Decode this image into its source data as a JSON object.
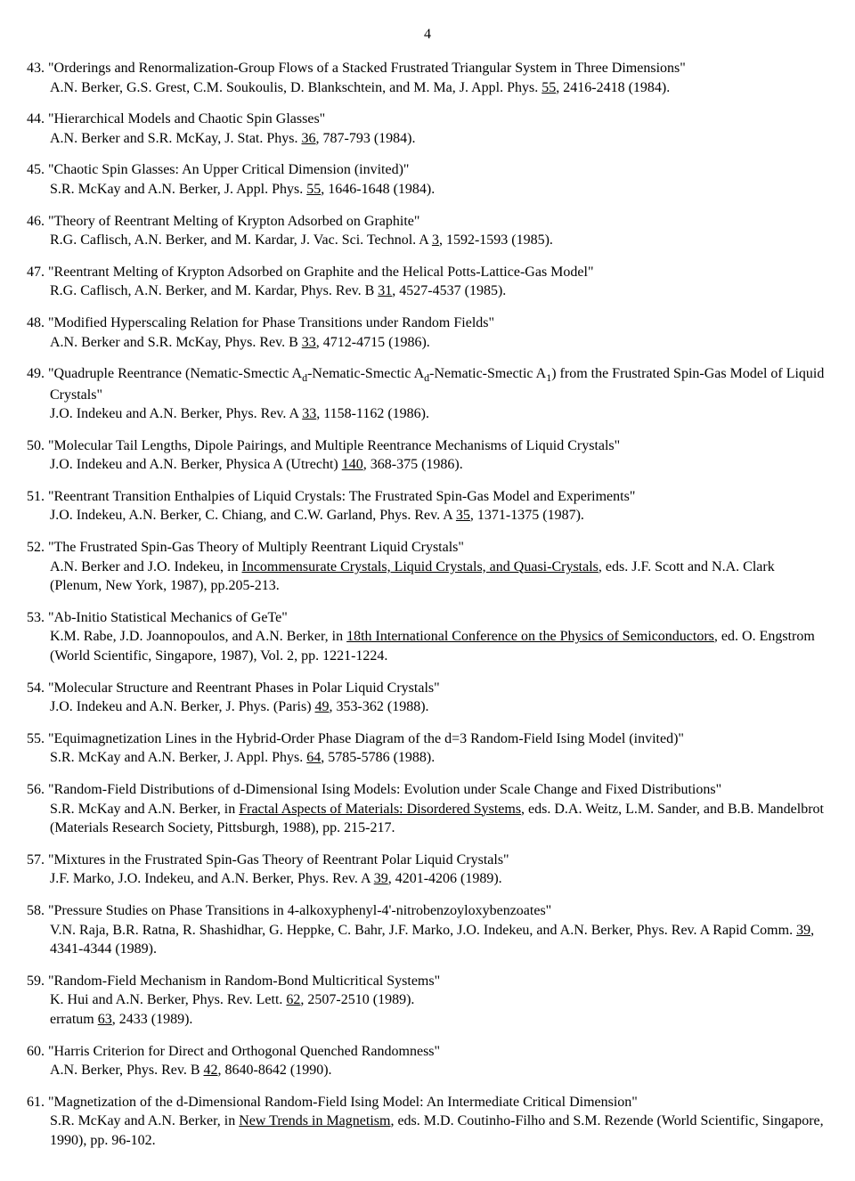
{
  "page_number": "4",
  "entries": [
    {
      "num": "43.",
      "title": "\"Orderings and Renormalization-Group Flows of a Stacked Frustrated Triangular System in Three Dimensions\"",
      "authors_pre": "A.N. Berker, G.S. Grest, C.M. Soukoulis, D. Blankschtein, and M. Ma, J. Appl. Phys. ",
      "u1": "55",
      "authors_post": ", 2416-2418 (1984)."
    },
    {
      "num": "44.",
      "title": "\"Hierarchical Models and Chaotic Spin Glasses\"",
      "authors_pre": "A.N. Berker and S.R. McKay, J. Stat. Phys. ",
      "u1": "36",
      "authors_post": ", 787-793 (1984)."
    },
    {
      "num": "45.",
      "title": "\"Chaotic Spin Glasses:  An Upper Critical Dimension (invited)\"",
      "authors_pre": "S.R. McKay and A.N. Berker, J. Appl. Phys. ",
      "u1": "55",
      "authors_post": ", 1646-1648 (1984)."
    },
    {
      "num": "46.",
      "title": "\"Theory of Reentrant Melting of Krypton Adsorbed on Graphite\"",
      "authors_pre": "R.G. Caflisch, A.N. Berker, and M. Kardar, J. Vac. Sci. Technol. A ",
      "u1": "3",
      "authors_post": ", 1592-1593 (1985)."
    },
    {
      "num": "47.",
      "title": "\"Reentrant Melting of Krypton Adsorbed on Graphite and the Helical Potts-Lattice-Gas Model\"",
      "authors_pre": "R.G. Caflisch, A.N. Berker, and M. Kardar, Phys. Rev. B ",
      "u1": "31",
      "authors_post": ", 4527-4537 (1985)."
    },
    {
      "num": "48.",
      "title": "\"Modified Hyperscaling Relation for Phase Transitions under Random Fields\"",
      "authors_pre": "A.N. Berker and S.R. McKay, Phys. Rev. B ",
      "u1": "33",
      "authors_post": ", 4712-4715 (1986)."
    },
    {
      "num": "49.",
      "title_html": true,
      "title_pre": "\"Quadruple Reentrance (Nematic-Smectic A",
      "title_sub": "d",
      "title_mid1": "-Nematic-Smectic A",
      "title_sub2": "d",
      "title_mid2": "-Nematic-Smectic A",
      "title_sub3": "1",
      "title_tail": ") from the Frustrated Spin-Gas Model of Liquid Crystals\"",
      "authors_pre": "J.O. Indekeu and A.N. Berker, Phys. Rev. A ",
      "u1": "33",
      "authors_post": ", 1158-1162 (1986)."
    },
    {
      "num": "50.",
      "title": "\"Molecular Tail Lengths, Dipole Pairings, and Multiple Reentrance Mechanisms of Liquid Crystals\"",
      "authors_pre": "J.O. Indekeu and A.N. Berker, Physica A (Utrecht) ",
      "u1": "140",
      "authors_post": ", 368-375 (1986)."
    },
    {
      "num": "51.",
      "title": "\"Reentrant Transition Enthalpies of Liquid Crystals: The Frustrated Spin-Gas Model and Experiments\"",
      "authors_pre": "J.O. Indekeu, A.N. Berker, C. Chiang, and C.W. Garland, Phys. Rev. A ",
      "u1": "35",
      "authors_post": ", 1371-1375 (1987)."
    },
    {
      "num": "52.",
      "title": "\"The Frustrated Spin-Gas Theory of Multiply Reentrant Liquid Crystals\"",
      "authors_pre": "A.N. Berker and J.O. Indekeu, in ",
      "u1": "Incommensurate Crystals, Liquid Crystals, and Quasi-Crystals",
      "authors_post": ", eds. J.F. Scott and N.A. Clark (Plenum, New York, 1987), pp.205-213."
    },
    {
      "num": "53.",
      "title": "\"Ab-Initio Statistical Mechanics of GeTe\"",
      "authors_pre": "K.M. Rabe, J.D. Joannopoulos, and A.N. Berker, in ",
      "u1": "18th International Conference on the Physics of Semiconductors",
      "authors_post": ", ed. O. Engstrom (World Scientific, Singapore, 1987), Vol. 2, pp. 1221-1224."
    },
    {
      "num": "54.",
      "title": "\"Molecular Structure and Reentrant Phases in Polar Liquid Crystals\"",
      "authors_pre": "J.O. Indekeu and A.N. Berker, J. Phys. (Paris) ",
      "u1": "49",
      "authors_post": ", 353-362 (1988)."
    },
    {
      "num": "55.",
      "title": "\"Equimagnetization Lines in the Hybrid-Order Phase Diagram of the d=3 Random-Field Ising Model (invited)\"",
      "authors_pre": "S.R. McKay and A.N. Berker, J. Appl. Phys. ",
      "u1": "64",
      "authors_post": ", 5785-5786 (1988)."
    },
    {
      "num": "56.",
      "title": "\"Random-Field Distributions of d-Dimensional Ising Models: Evolution under Scale Change and Fixed Distributions\"",
      "authors_pre": "S.R. McKay and A.N. Berker, in ",
      "u1": "Fractal Aspects of Materials: Disordered Systems",
      "authors_post": ", eds. D.A. Weitz, L.M. Sander, and B.B. Mandelbrot (Materials Research Society, Pittsburgh, 1988), pp. 215-217."
    },
    {
      "num": "57.",
      "title": "\"Mixtures in the Frustrated Spin-Gas Theory of Reentrant Polar Liquid Crystals\"",
      "authors_pre": "J.F. Marko, J.O. Indekeu, and A.N. Berker, Phys. Rev. A ",
      "u1": "39",
      "authors_post": ", 4201-4206 (1989)."
    },
    {
      "num": "58.",
      "title": "\"Pressure Studies on Phase Transitions in 4-alkoxyphenyl-4'-nitrobenzoyloxybenzoates\"",
      "authors_pre": "V.N. Raja, B.R. Ratna, R. Shashidhar, G. Heppke, C. Bahr, J.F. Marko, J.O. Indekeu, and A.N. Berker, Phys. Rev. A Rapid Comm. ",
      "u1": "39",
      "authors_post": ", 4341-4344 (1989)."
    },
    {
      "num": "59.",
      "title": "\"Random-Field Mechanism in Random-Bond Multicritical Systems\"",
      "authors_pre": "K. Hui and A.N. Berker, Phys. Rev. Lett. ",
      "u1": "62",
      "authors_post": ", 2507-2510 (1989).",
      "extra_pre": "erratum ",
      "u2": "63",
      "extra_post": ", 2433 (1989)."
    },
    {
      "num": "60.",
      "title": "\"Harris Criterion for Direct and Orthogonal Quenched Randomness\"",
      "authors_pre": "A.N. Berker, Phys. Rev. B ",
      "u1": "42",
      "authors_post": ", 8640-8642 (1990)."
    },
    {
      "num": "61.",
      "title": "\"Magnetization of the d-Dimensional Random-Field Ising Model: An Intermediate Critical Dimension\"",
      "authors_pre": "S.R. McKay and A.N. Berker, in ",
      "u1": "New Trends in Magnetism",
      "authors_post": ", eds. M.D. Coutinho-Filho and S.M. Rezende (World Scientific, Singapore, 1990), pp. 96-102."
    }
  ]
}
